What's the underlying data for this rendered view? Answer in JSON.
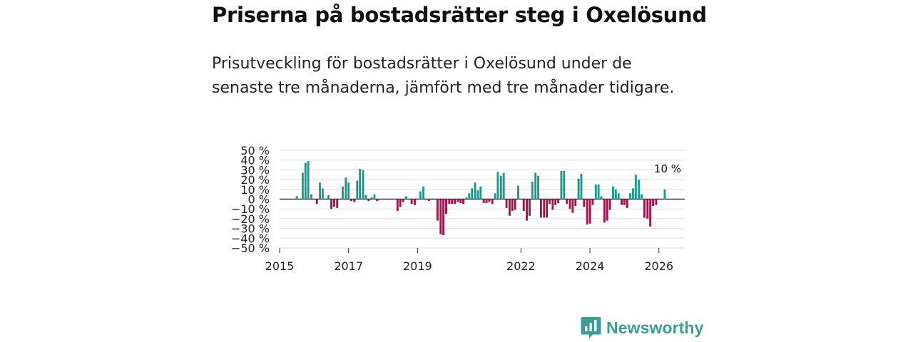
{
  "header": {
    "title": "Priserna på bostadsrätter steg i Oxelösund",
    "subtitle": "Prisutveckling för bostadsrätter i Oxelösund under de senaste tre månaderna, jämfört med tre månader tidigare."
  },
  "brand": {
    "name": "Newsworthy",
    "logo_icon": "newsworthy-logo-icon"
  },
  "colors": {
    "positive": "#1a9a8f",
    "negative": "#a3124a",
    "grid": "#dddddd",
    "zero_line": "#333333"
  },
  "chart_data": {
    "type": "bar",
    "ylim": [
      -50,
      50
    ],
    "yticks": [
      50,
      40,
      30,
      20,
      10,
      0,
      -10,
      -20,
      -30,
      -40,
      -50
    ],
    "ytick_labels": [
      "50 %",
      "40 %",
      "30 %",
      "20 %",
      "10 %",
      "0 %",
      "−10 %",
      "−20 %",
      "−30 %",
      "−40 %",
      "−50 %"
    ],
    "xlim": [
      2015.0,
      2026.75
    ],
    "xticks": [
      2015,
      2017,
      2019,
      2022,
      2024,
      2026
    ],
    "xtick_labels": [
      "2015",
      "2017",
      "2019",
      "2022",
      "2024",
      "2026"
    ],
    "annotation": {
      "x": 2026.17,
      "y": 10,
      "label": "10 %"
    },
    "series": [
      {
        "name": "Prisutveckling",
        "x": [
          2015.5,
          2015.67,
          2015.75,
          2015.83,
          2015.92,
          2016.08,
          2016.17,
          2016.25,
          2016.42,
          2016.5,
          2016.58,
          2016.67,
          2016.83,
          2016.92,
          2017.0,
          2017.08,
          2017.17,
          2017.25,
          2017.33,
          2017.42,
          2017.5,
          2017.58,
          2017.67,
          2017.75,
          2017.83,
          2018.42,
          2018.5,
          2018.58,
          2018.67,
          2018.83,
          2018.92,
          2019.08,
          2019.17,
          2019.33,
          2019.58,
          2019.67,
          2019.75,
          2019.83,
          2019.92,
          2020.0,
          2020.08,
          2020.17,
          2020.25,
          2020.33,
          2020.42,
          2020.5,
          2020.58,
          2020.67,
          2020.75,
          2020.83,
          2020.92,
          2021.0,
          2021.08,
          2021.17,
          2021.25,
          2021.33,
          2021.42,
          2021.5,
          2021.58,
          2021.67,
          2021.75,
          2021.83,
          2021.92,
          2022.08,
          2022.17,
          2022.25,
          2022.33,
          2022.42,
          2022.5,
          2022.58,
          2022.67,
          2022.75,
          2022.83,
          2022.92,
          2023.0,
          2023.08,
          2023.17,
          2023.25,
          2023.33,
          2023.42,
          2023.5,
          2023.58,
          2023.67,
          2023.75,
          2023.83,
          2023.92,
          2024.0,
          2024.08,
          2024.17,
          2024.25,
          2024.33,
          2024.42,
          2024.5,
          2024.58,
          2024.67,
          2024.75,
          2024.83,
          2024.92,
          2025.0,
          2025.08,
          2025.17,
          2025.25,
          2025.33,
          2025.42,
          2025.5,
          2025.58,
          2025.67,
          2025.75,
          2025.83,
          2025.92,
          2026.17
        ],
        "values": [
          3,
          27,
          37,
          39,
          5,
          -5,
          17,
          11,
          4,
          -10,
          -8,
          -9,
          13,
          22,
          17,
          -2,
          -3,
          19,
          31,
          30,
          4,
          -2,
          2,
          5,
          -2,
          -12,
          -8,
          -3,
          3,
          -5,
          -6,
          8,
          13,
          -2,
          -22,
          -36,
          -37,
          -15,
          -5,
          -5,
          -5,
          -3,
          -4,
          -5,
          2,
          6,
          11,
          17,
          9,
          13,
          -4,
          -4,
          -3,
          -5,
          6,
          28,
          24,
          27,
          -9,
          -17,
          -12,
          -11,
          14,
          -12,
          -22,
          -17,
          18,
          27,
          24,
          -19,
          -19,
          -19,
          -5,
          -11,
          -6,
          -4,
          29,
          29,
          -5,
          -10,
          -14,
          -7,
          21,
          26,
          -8,
          -26,
          -25,
          -6,
          15,
          15,
          3,
          -24,
          -22,
          -11,
          13,
          10,
          6,
          -6,
          -6,
          -9,
          6,
          11,
          25,
          20,
          5,
          -19,
          -20,
          -28,
          -7,
          -6,
          10
        ]
      }
    ]
  }
}
